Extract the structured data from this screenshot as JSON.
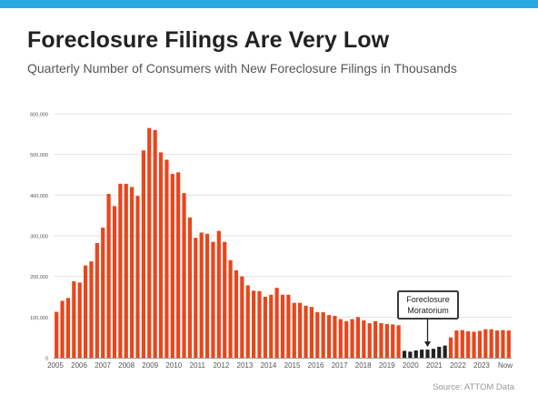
{
  "header": {
    "title": "Foreclosure Filings Are Very Low",
    "subtitle": "Quarterly Number of Consumers with New Foreclosure Filings in Thousands"
  },
  "footer": {
    "source": "Source: ATTOM Data"
  },
  "colors": {
    "accent_bar": "#29a8df",
    "bar": "#e8461c",
    "moratorium_bar": "#222222",
    "grid": "#e3e3e3",
    "axis_text": "#555555"
  },
  "chart_data": {
    "type": "bar",
    "title": "Foreclosure Filings Are Very Low",
    "xlabel": "",
    "ylabel": "",
    "ylim": [
      0,
      600000
    ],
    "yticks": [
      0,
      100000,
      200000,
      300000,
      400000,
      500000,
      600000
    ],
    "ytick_labels": [
      "0",
      "100,000",
      "200,000",
      "300,000",
      "400,000",
      "500,000",
      "600,000"
    ],
    "xtick_labels": [
      "2005",
      "2006",
      "2007",
      "2008",
      "2009",
      "2010",
      "2011",
      "2012",
      "2013",
      "2014",
      "2015",
      "2016",
      "2017",
      "2018",
      "2019",
      "2020",
      "2021",
      "2022",
      "2023",
      "Now"
    ],
    "grid": true,
    "values": [
      113000,
      140000,
      147000,
      188000,
      185000,
      227000,
      237000,
      282000,
      320000,
      403000,
      373000,
      428000,
      428000,
      420000,
      398000,
      510000,
      565000,
      560000,
      505000,
      487000,
      452000,
      456000,
      405000,
      345000,
      295000,
      308000,
      305000,
      285000,
      312000,
      285000,
      240000,
      215000,
      200000,
      178000,
      165000,
      164000,
      150000,
      155000,
      172000,
      155000,
      155000,
      135000,
      135000,
      128000,
      125000,
      112000,
      112000,
      105000,
      103000,
      95000,
      90000,
      95000,
      100000,
      92000,
      85000,
      90000,
      85000,
      83000,
      82000,
      80000,
      17000,
      15000,
      18000,
      20000,
      20000,
      22000,
      27000,
      30000,
      50000,
      67000,
      68000,
      65000,
      64000,
      66000,
      70000,
      70000,
      67000,
      68000,
      67000
    ],
    "highlight": {
      "label": "Foreclosure\nMoratorium",
      "start_index": 60,
      "end_index": 67
    },
    "annotations": [
      {
        "text": "Foreclosure Moratorium",
        "line1": "Foreclosure",
        "line2": "Moratorium",
        "arrow_to_index": 64
      }
    ]
  }
}
